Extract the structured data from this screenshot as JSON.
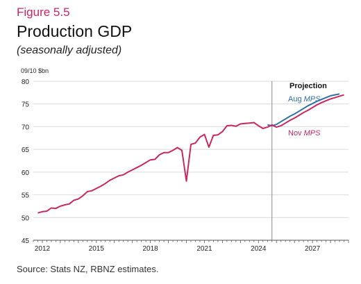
{
  "figure_label": "Figure 5.5",
  "title": "Production GDP",
  "subtitle": "(seasonally adjusted)",
  "source": "Source: Stats NZ, RBNZ estimates.",
  "chart_data": {
    "type": "line",
    "ylabel": "09/10 $bn",
    "xlim": [
      2011.5,
      2029.0
    ],
    "ylim": [
      45,
      80
    ],
    "yticks": [
      45,
      50,
      55,
      60,
      65,
      70,
      75,
      80
    ],
    "xticks": [
      2012,
      2015,
      2018,
      2021,
      2024,
      2027
    ],
    "grid": true,
    "projection_start": 2024.75,
    "projection_label": "Projection",
    "colors": {
      "aug": "#2e6fa6",
      "nov": "#c8285f",
      "grid": "#d9d9d9",
      "axis": "#555555",
      "projection_line": "#888888"
    },
    "series": [
      {
        "name": "Nov",
        "name_italic": "MPS",
        "key": "nov",
        "x": [
          2011.75,
          2012.0,
          2012.25,
          2012.5,
          2012.75,
          2013.0,
          2013.25,
          2013.5,
          2013.75,
          2014.0,
          2014.25,
          2014.5,
          2014.75,
          2015.0,
          2015.25,
          2015.5,
          2015.75,
          2016.0,
          2016.25,
          2016.5,
          2016.75,
          2017.0,
          2017.25,
          2017.5,
          2017.75,
          2018.0,
          2018.25,
          2018.5,
          2018.75,
          2019.0,
          2019.25,
          2019.5,
          2019.75,
          2020.0,
          2020.25,
          2020.5,
          2020.75,
          2021.0,
          2021.25,
          2021.5,
          2021.75,
          2022.0,
          2022.25,
          2022.5,
          2022.75,
          2023.0,
          2023.25,
          2023.5,
          2023.75,
          2024.0,
          2024.25,
          2024.5,
          2024.75,
          2025.0,
          2025.25,
          2025.5,
          2025.75,
          2026.0,
          2026.25,
          2026.5,
          2026.75,
          2027.0,
          2027.25,
          2027.5,
          2027.75,
          2028.0,
          2028.25,
          2028.5,
          2028.75
        ],
        "values": [
          51.0,
          51.3,
          51.4,
          52.1,
          52.0,
          52.5,
          52.8,
          53.0,
          53.8,
          54.1,
          54.8,
          55.7,
          55.9,
          56.4,
          56.9,
          57.5,
          58.2,
          58.7,
          59.2,
          59.4,
          60.0,
          60.5,
          61.0,
          61.5,
          62.1,
          62.7,
          62.8,
          63.8,
          64.3,
          64.3,
          64.8,
          65.4,
          64.8,
          58.0,
          66.1,
          66.4,
          67.7,
          68.3,
          65.5,
          68.1,
          68.2,
          68.9,
          70.2,
          70.3,
          70.1,
          70.6,
          70.7,
          70.8,
          70.9,
          70.2,
          69.6,
          69.9,
          70.4,
          69.9,
          70.2,
          70.8,
          71.4,
          71.9,
          72.5,
          73.1,
          73.6,
          74.2,
          74.8,
          75.3,
          75.7,
          76.1,
          76.4,
          76.7,
          77.0
        ]
      },
      {
        "name": "Aug",
        "name_italic": "MPS",
        "key": "aug",
        "x": [
          2024.5,
          2024.75,
          2025.0,
          2025.25,
          2025.5,
          2025.75,
          2026.0,
          2026.25,
          2026.5,
          2026.75,
          2027.0,
          2027.25,
          2027.5,
          2027.75,
          2028.0,
          2028.25,
          2028.5
        ],
        "values": [
          70.4,
          70.2,
          70.5,
          71.1,
          71.7,
          72.3,
          72.8,
          73.4,
          74.0,
          74.6,
          75.1,
          75.6,
          76.0,
          76.4,
          76.8,
          77.0,
          77.2
        ]
      }
    ]
  }
}
